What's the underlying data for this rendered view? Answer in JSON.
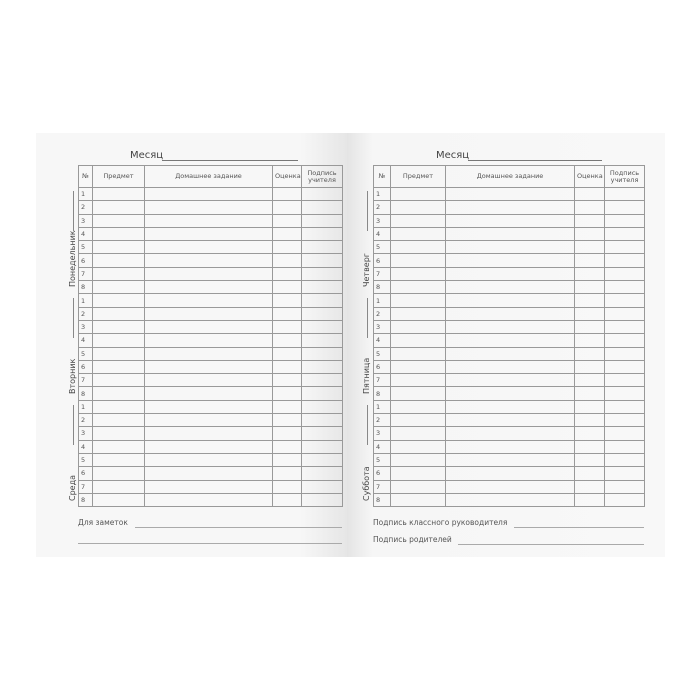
{
  "month_label": "Месяц",
  "columns": [
    "№",
    "Предмет",
    "Домашнее задание",
    "Оценка",
    "Подпись учителя"
  ],
  "row_numbers": [
    "1",
    "2",
    "3",
    "4",
    "5",
    "6",
    "7",
    "8"
  ],
  "left_page": {
    "days": [
      "Понедельник",
      "Вторник",
      "Среда"
    ],
    "notes_label": "Для заметок"
  },
  "right_page": {
    "days": [
      "Четверг",
      "Пятница",
      "Суббота"
    ],
    "teacher_sign_label": "Подпись классного руководителя",
    "parent_sign_label": "Подпись родителей"
  }
}
